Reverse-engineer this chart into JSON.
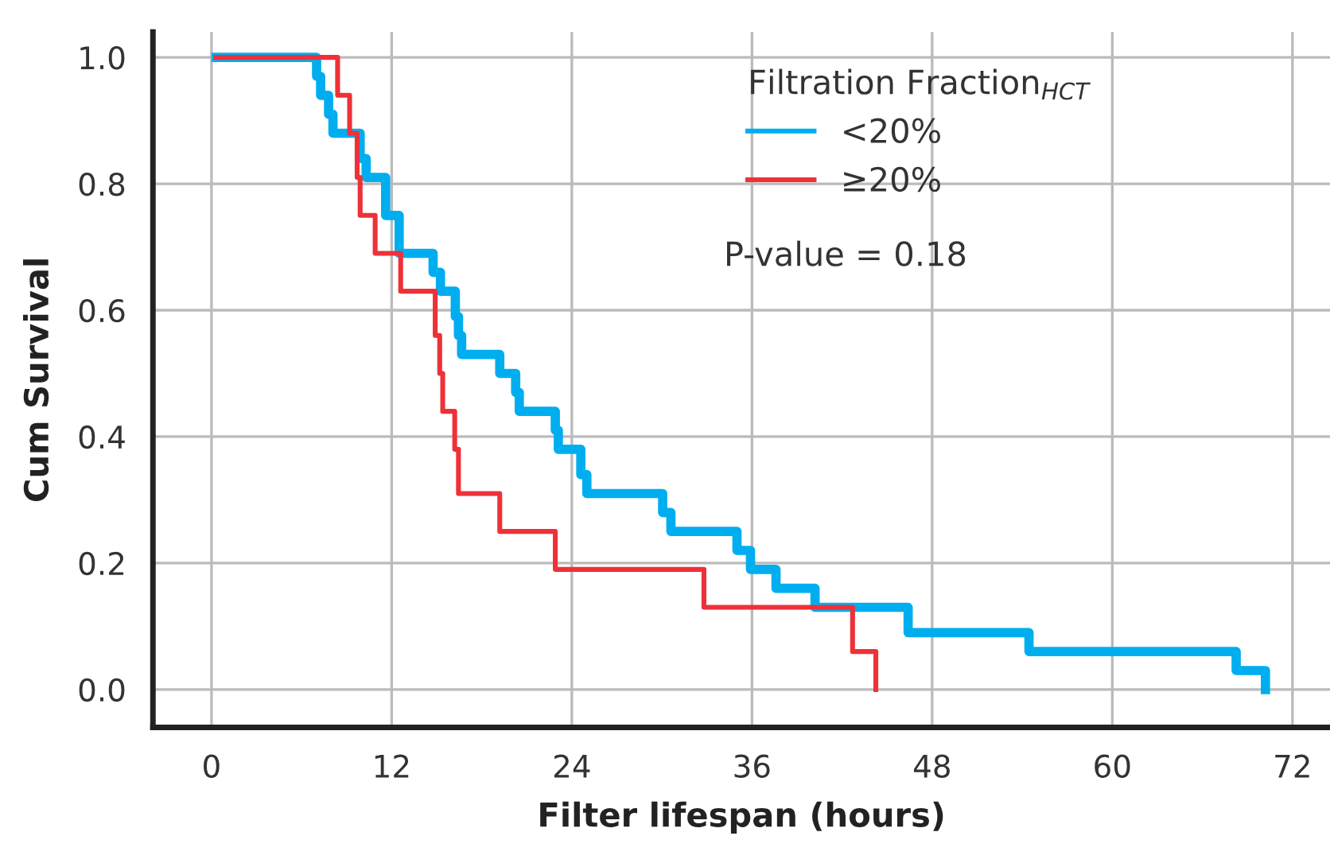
{
  "chart_data": {
    "type": "step",
    "xlabel": "Filter lifespan (hours)",
    "ylabel": "Cum Survival",
    "legend_title": "Filtration Fraction$_{HCT}$",
    "series": [
      {
        "name": "<20%",
        "color": "#00aeef",
        "x": [
          0.3,
          7.0,
          7.27,
          7.8,
          8.09,
          9.9,
          10.3,
          11.6,
          12.5,
          14.76,
          15.25,
          16.24,
          16.45,
          16.66,
          19.2,
          20.26,
          20.5,
          22.9,
          23.1,
          24.6,
          25.0,
          30.05,
          30.6,
          35.0,
          35.9,
          37.6,
          40.2,
          46.4,
          54.45,
          68.25,
          70.2
        ],
        "values": [
          1.0,
          0.97,
          0.94,
          0.91,
          0.88,
          0.84,
          0.81,
          0.75,
          0.69,
          0.66,
          0.63,
          0.59,
          0.56,
          0.53,
          0.5,
          0.47,
          0.44,
          0.41,
          0.38,
          0.34,
          0.31,
          0.28,
          0.25,
          0.22,
          0.19,
          0.16,
          0.13,
          0.09,
          0.06,
          0.03,
          0.0
        ]
      },
      {
        "name": "≥20%",
        "color": "#ee3138",
        "x": [
          0.3,
          8.4,
          9.2,
          9.7,
          9.9,
          10.9,
          12.6,
          14.9,
          15.2,
          15.4,
          16.2,
          16.45,
          19.2,
          22.9,
          32.8,
          42.7,
          44.25
        ],
        "values": [
          1.0,
          0.94,
          0.88,
          0.81,
          0.75,
          0.69,
          0.63,
          0.56,
          0.5,
          0.44,
          0.38,
          0.31,
          0.25,
          0.19,
          0.13,
          0.06,
          0.0
        ]
      }
    ],
    "annotations": [
      "P-value = 0.18"
    ],
    "xlim": [
      -3.9,
      74.5
    ],
    "ylim": [
      -0.06,
      1.04
    ],
    "xticks": [
      0,
      12,
      24,
      36,
      48,
      60,
      72
    ],
    "yticks": [
      {
        "value": 0,
        "label": "0.0"
      },
      {
        "value": 0.2,
        "label": "0.2"
      },
      {
        "value": 0.4,
        "label": "0.4"
      },
      {
        "value": 0.6,
        "label": "0.6"
      },
      {
        "value": 0.8,
        "label": "0.8"
      },
      {
        "value": 1.0,
        "label": "1.0"
      }
    ],
    "grid": true,
    "legend": "top right",
    "line_style": "solid",
    "marker": "none"
  }
}
